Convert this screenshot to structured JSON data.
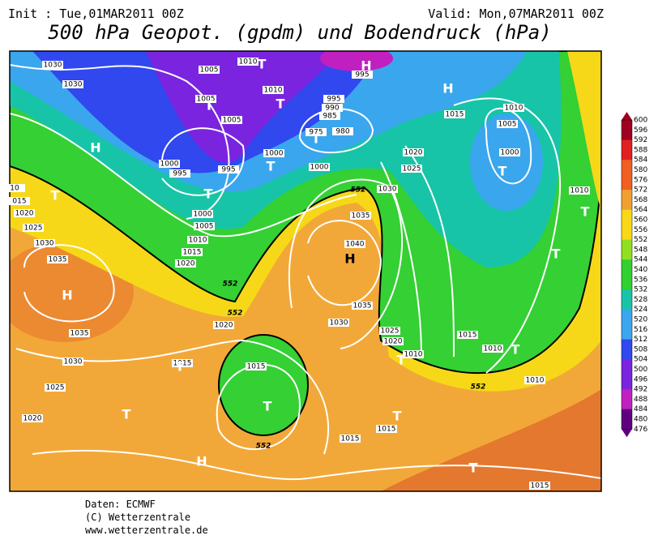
{
  "header": {
    "init": "Init : Tue,01MAR2011 00Z",
    "valid": "Valid: Mon,07MAR2011 00Z",
    "title": "500 hPa Geopot. (gpdm) und Bodendruck (hPa)"
  },
  "map": {
    "pressure_labels": [
      "1030",
      "1030",
      "1005",
      "1010",
      "1005",
      "1010",
      "1005",
      "995",
      "990",
      "985",
      "980",
      "975",
      "1000",
      "1000",
      "1000",
      "995",
      "995",
      "1000",
      "1005",
      "1010",
      "1015",
      "1020",
      "1015",
      "1010",
      "1005",
      "1000",
      "1020",
      "1025",
      "1030",
      "1035",
      "1040",
      "1035",
      "1030",
      "1025",
      "1020",
      "1010",
      "1015",
      "1010",
      "1010",
      "1015",
      "1015",
      "1015",
      "1020",
      "1015",
      "1035",
      "1035",
      "1030",
      "1025",
      "1020",
      "1030",
      "1025",
      "1020",
      "015",
      "10",
      "1010",
      "995",
      "1015"
    ],
    "centers": [
      "H",
      "T",
      "T",
      "T",
      "T",
      "T",
      "T",
      "H",
      "T",
      "T",
      "T",
      "H",
      "H",
      "T",
      "T",
      "H",
      "T",
      "T",
      "T",
      "T",
      "T",
      "H",
      "T"
    ],
    "contour_labels": [
      "552",
      "552",
      "552",
      "552",
      "552"
    ]
  },
  "colorbar": {
    "labels": [
      "600",
      "596",
      "592",
      "588",
      "584",
      "580",
      "576",
      "572",
      "568",
      "564",
      "560",
      "556",
      "552",
      "548",
      "544",
      "540",
      "536",
      "532",
      "528",
      "524",
      "520",
      "516",
      "512",
      "508",
      "504",
      "500",
      "496",
      "492",
      "488",
      "484",
      "480",
      "476"
    ]
  },
  "footer": {
    "lines": [
      "Daten: ECMWF",
      "(C) Wetterzentrale",
      "www.wetterzentrale.de"
    ]
  }
}
